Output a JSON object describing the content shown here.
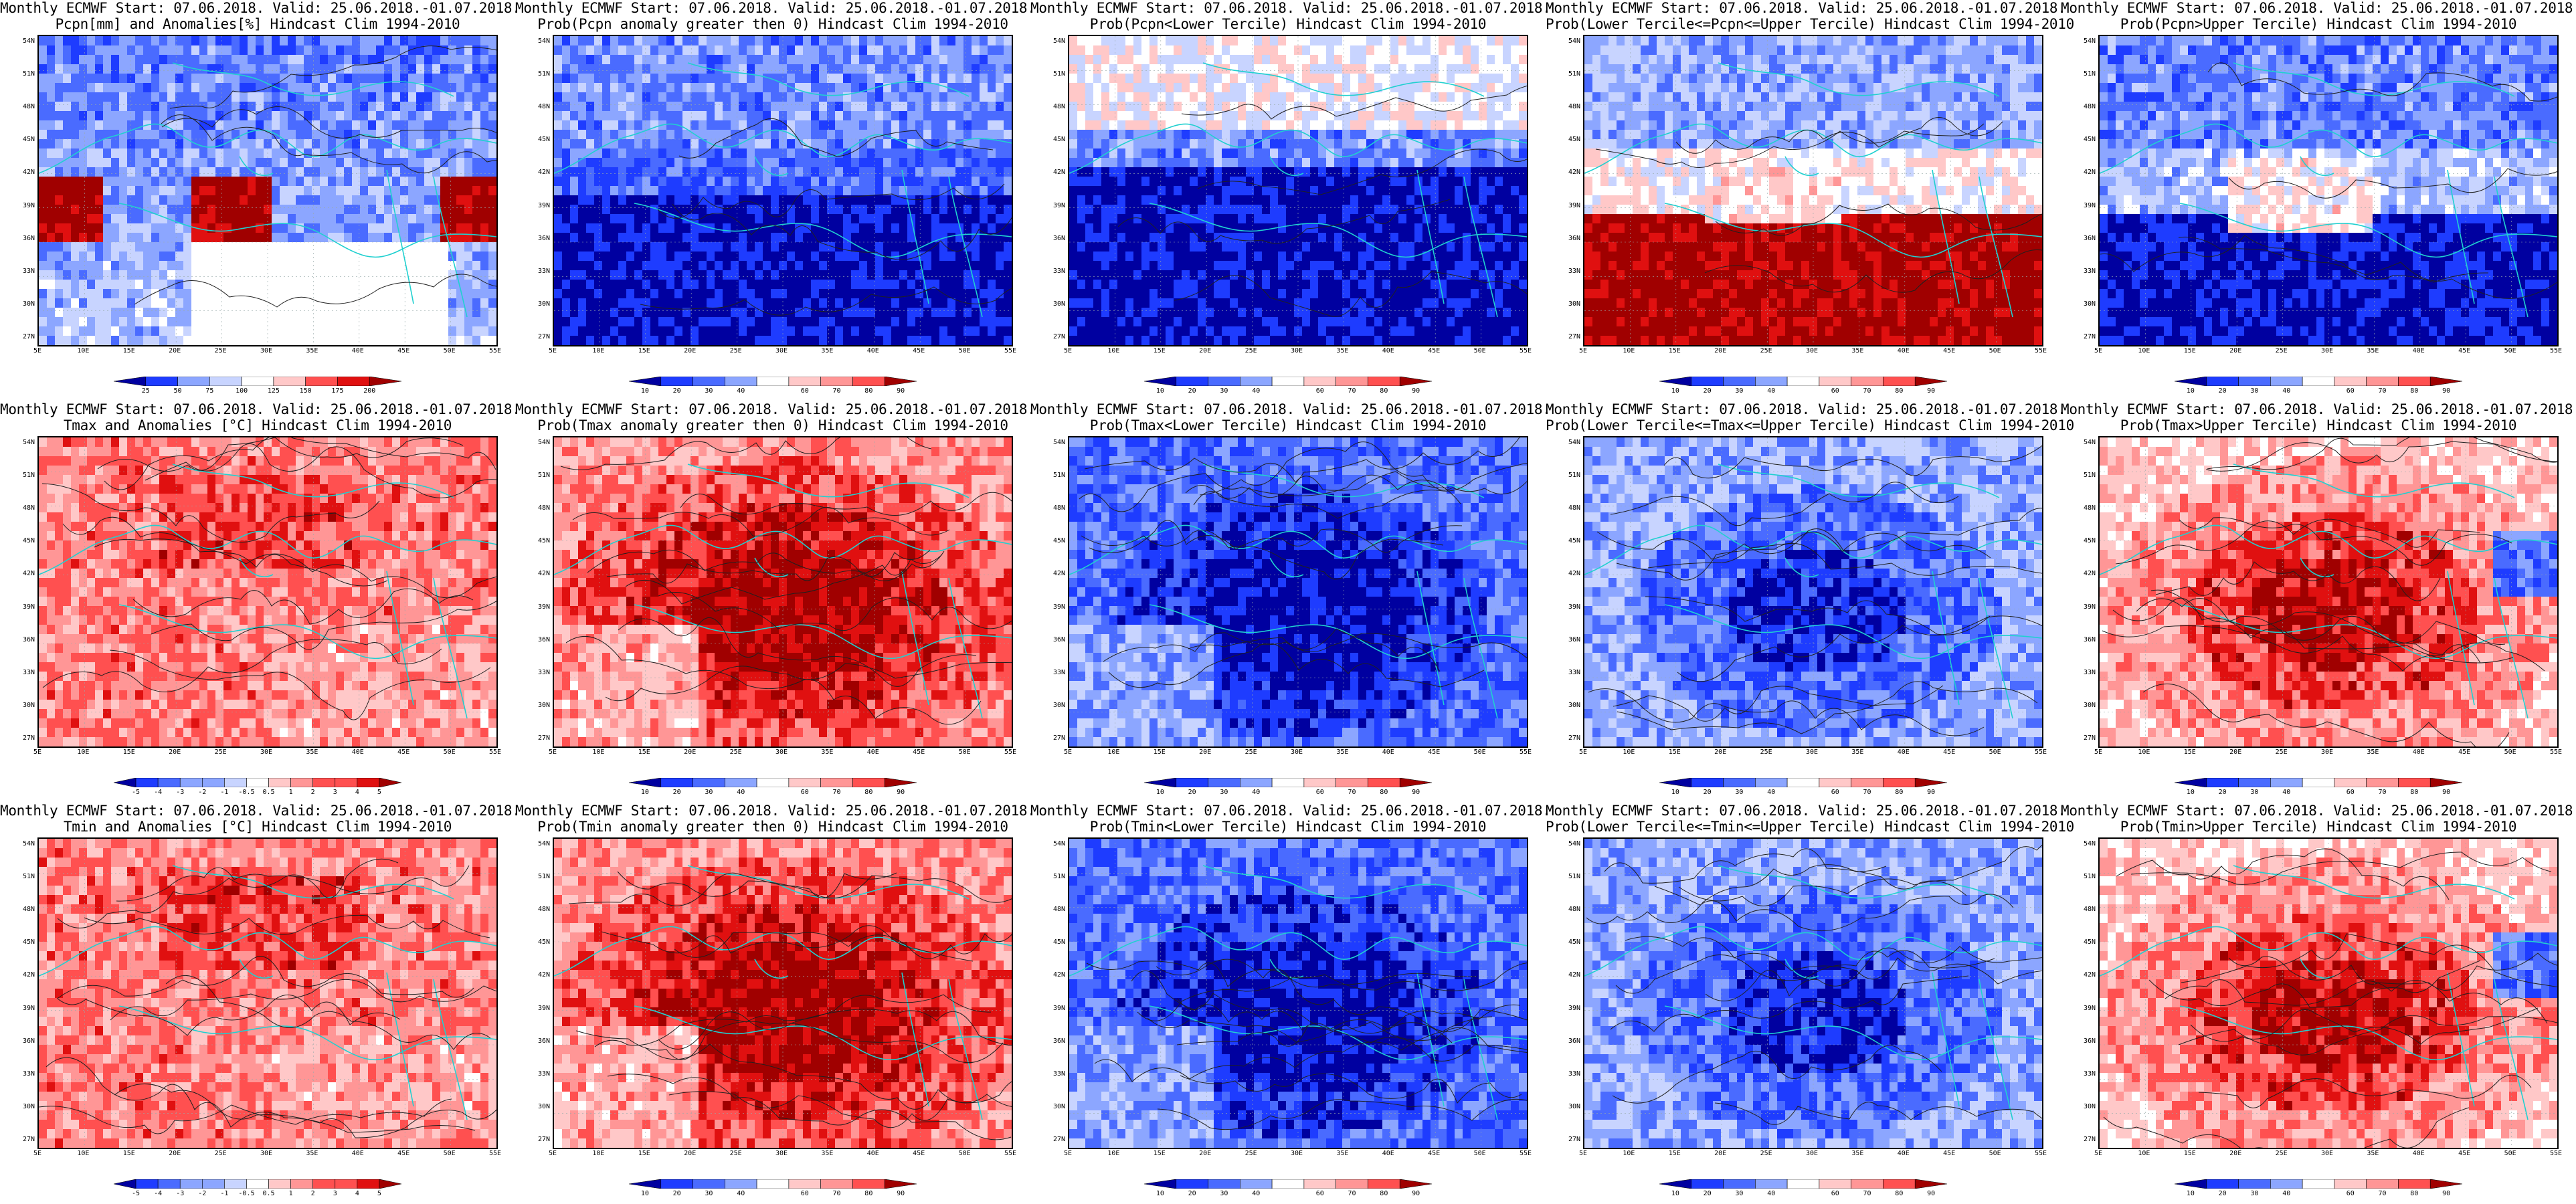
{
  "panels": [
    {
      "id": "r0c0",
      "title1": "Monthly ECMWF Start: 07.06.2018. Valid: 25.06.2018.-01.07.2018.",
      "title2": "Pcpn[mm] and Anomalies[%] Hindcast Clim 1994-2010",
      "scheme": "prec",
      "colorbar": [
        "25",
        "50",
        "75",
        "100",
        "125",
        "150",
        "175",
        "200"
      ],
      "ticks_at_cuts": true
    },
    {
      "id": "r0c1",
      "title1": "Monthly ECMWF Start: 07.06.2018. Valid: 25.06.2018.-01.07.2018.",
      "title2": "Prob(Pcpn anomaly greater then 0) Hindcast Clim 1994-2010",
      "scheme": "pos",
      "colorbar": [
        "10",
        "20",
        "30",
        "40",
        "60",
        "70",
        "80",
        "90"
      ],
      "ticks_at_cuts": false
    },
    {
      "id": "r0c2",
      "title1": "Monthly ECMWF Start: 07.06.2018. Valid: 25.06.2018.-01.07.2018.",
      "title2": "Prob(Pcpn<Lower Tercile) Hindcast Clim 1994-2010",
      "scheme": "low",
      "colorbar": [
        "10",
        "20",
        "30",
        "40",
        "60",
        "70",
        "80",
        "90"
      ],
      "ticks_at_cuts": false
    },
    {
      "id": "r0c3",
      "title1": "Monthly ECMWF Start: 07.06.2018. Valid: 25.06.2018.-01.07.2018.",
      "title2": "Prob(Lower Tercile<=Pcpn<=Upper Tercile) Hindcast Clim 1994-2010",
      "scheme": "mid",
      "colorbar": [
        "10",
        "20",
        "30",
        "40",
        "60",
        "70",
        "80",
        "90"
      ],
      "ticks_at_cuts": false
    },
    {
      "id": "r0c4",
      "title1": "Monthly ECMWF Start: 07.06.2018. Valid: 25.06.2018.-01.07.2018.",
      "title2": "Prob(Pcpn>Upper Tercile) Hindcast Clim 1994-2010",
      "scheme": "up",
      "colorbar": [
        "10",
        "20",
        "30",
        "40",
        "60",
        "70",
        "80",
        "90"
      ],
      "ticks_at_cuts": false
    },
    {
      "id": "r1c0",
      "title1": "Monthly ECMWF Start: 07.06.2018. Valid: 25.06.2018.-01.07.2018.",
      "title2": "Tmax and Anomalies [°C] Hindcast Clim 1994-2010",
      "scheme": "tanom",
      "colorbar": [
        "-5",
        "-4",
        "-3",
        "-2",
        "-1",
        "-0.5",
        "0.5",
        "1",
        "2",
        "3",
        "4",
        "5"
      ],
      "ticks_at_cuts": true
    },
    {
      "id": "r1c1",
      "title1": "Monthly ECMWF Start: 07.06.2018. Valid: 25.06.2018.-01.07.2018.",
      "title2": "Prob(Tmax anomaly greater then 0) Hindcast Clim 1994-2010",
      "scheme": "tpos",
      "colorbar": [
        "10",
        "20",
        "30",
        "40",
        "60",
        "70",
        "80",
        "90"
      ],
      "ticks_at_cuts": false
    },
    {
      "id": "r1c2",
      "title1": "Monthly ECMWF Start: 07.06.2018. Valid: 25.06.2018.-01.07.2018.",
      "title2": "Prob(Tmax<Lower Tercile) Hindcast Clim 1994-2010",
      "scheme": "tlow",
      "colorbar": [
        "10",
        "20",
        "30",
        "40",
        "60",
        "70",
        "80",
        "90"
      ],
      "ticks_at_cuts": false
    },
    {
      "id": "r1c3",
      "title1": "Monthly ECMWF Start: 07.06.2018. Valid: 25.06.2018.-01.07.2018.",
      "title2": "Prob(Lower Tercile<=Tmax<=Upper Tercile) Hindcast Clim 1994-2010",
      "scheme": "tmid",
      "colorbar": [
        "10",
        "20",
        "30",
        "40",
        "60",
        "70",
        "80",
        "90"
      ],
      "ticks_at_cuts": false
    },
    {
      "id": "r1c4",
      "title1": "Monthly ECMWF Start: 07.06.2018. Valid: 25.06.2018.-01.07.2018.",
      "title2": "Prob(Tmax>Upper Tercile) Hindcast Clim 1994-2010",
      "scheme": "tup",
      "colorbar": [
        "10",
        "20",
        "30",
        "40",
        "60",
        "70",
        "80",
        "90"
      ],
      "ticks_at_cuts": false
    },
    {
      "id": "r2c0",
      "title1": "Monthly ECMWF Start: 07.06.2018. Valid: 25.06.2018.-01.07.2018.",
      "title2": "Tmin and Anomalies [°C] Hindcast Clim 1994-2010",
      "scheme": "tanom2",
      "colorbar": [
        "-5",
        "-4",
        "-3",
        "-2",
        "-1",
        "-0.5",
        "0.5",
        "1",
        "2",
        "3",
        "4",
        "5"
      ],
      "ticks_at_cuts": true
    },
    {
      "id": "r2c1",
      "title1": "Monthly ECMWF Start: 07.06.2018. Valid: 25.06.2018.-01.07.2018.",
      "title2": "Prob(Tmin anomaly greater then 0) Hindcast Clim 1994-2010",
      "scheme": "tpos",
      "colorbar": [
        "10",
        "20",
        "30",
        "40",
        "60",
        "70",
        "80",
        "90"
      ],
      "ticks_at_cuts": false
    },
    {
      "id": "r2c2",
      "title1": "Monthly ECMWF Start: 07.06.2018. Valid: 25.06.2018.-01.07.2018.",
      "title2": "Prob(Tmin<Lower Tercile) Hindcast Clim 1994-2010",
      "scheme": "tlow",
      "colorbar": [
        "10",
        "20",
        "30",
        "40",
        "60",
        "70",
        "80",
        "90"
      ],
      "ticks_at_cuts": false
    },
    {
      "id": "r2c3",
      "title1": "Monthly ECMWF Start: 07.06.2018. Valid: 25.06.2018.-01.07.2018.",
      "title2": "Prob(Lower Tercile<=Tmin<=Upper Tercile) Hindcast Clim 1994-2010",
      "scheme": "tmid",
      "colorbar": [
        "10",
        "20",
        "30",
        "40",
        "60",
        "70",
        "80",
        "90"
      ],
      "ticks_at_cuts": false
    },
    {
      "id": "r2c4",
      "title1": "Monthly ECMWF Start: 07.06.2018. Valid: 25.06.2018.-01.07.2018.",
      "title2": "Prob(Tmin>Upper Tercile) Hindcast Clim 1994-2010",
      "scheme": "tup",
      "colorbar": [
        "10",
        "20",
        "30",
        "40",
        "60",
        "70",
        "80",
        "90"
      ],
      "ticks_at_cuts": false
    }
  ],
  "lat_labels": [
    "54N",
    "51N",
    "48N",
    "45N",
    "42N",
    "39N",
    "36N",
    "33N",
    "30N",
    "27N"
  ],
  "lon_labels": [
    "5E",
    "10E",
    "15E",
    "20E",
    "25E",
    "30E",
    "35E",
    "40E",
    "45E",
    "50E",
    "55E"
  ],
  "colors": {
    "deep_blue": "#0000a0",
    "blue": "#1e3cff",
    "mid_blue": "#4a6bff",
    "light_blue": "#8ca6ff",
    "pale_blue": "#c8d4ff",
    "white": "#ffffff",
    "pale_red": "#ffc8c8",
    "light_red": "#ff9696",
    "mid_red": "#ff5050",
    "red": "#e01010",
    "deep_red": "#a00000",
    "coast": "#20d0d0",
    "contour": "#202020"
  }
}
